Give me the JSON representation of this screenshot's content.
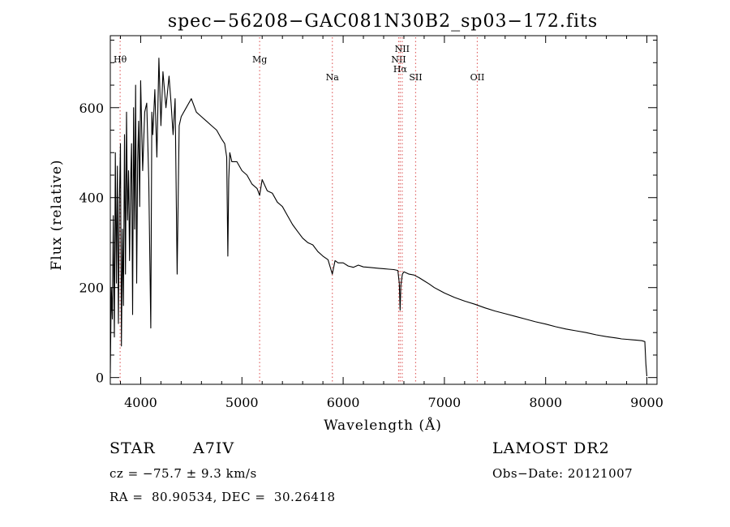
{
  "chart_data": {
    "type": "line",
    "title": "spec−56208−GAC081N30B2_sp03−172.fits",
    "xlabel": "Wavelength (Å)",
    "ylabel": "Flux (relative)",
    "xlim": [
      3700,
      9100
    ],
    "ylim": [
      -15,
      760
    ],
    "xticks": [
      4000,
      5000,
      6000,
      7000,
      8000,
      9000
    ],
    "yticks": [
      0,
      200,
      400,
      600
    ],
    "line_color": "#000000",
    "marker_color": "#e06666",
    "lines": [
      {
        "label": "Hθ",
        "x": 3797,
        "row": 1
      },
      {
        "label": "Mg",
        "x": 5175,
        "row": 1
      },
      {
        "label": "Na",
        "x": 5893,
        "row": 3
      },
      {
        "label": "NII",
        "x": 6548,
        "row": 1
      },
      {
        "label": "Hα",
        "x": 6563,
        "row": 2
      },
      {
        "label": "NII",
        "x": 6583,
        "row": 0
      },
      {
        "label": "SII",
        "x": 6716,
        "row": 3
      },
      {
        "label": "OII",
        "x": 7325,
        "row": 3
      }
    ],
    "series": [
      {
        "x": [
          3700,
          3710,
          3720,
          3730,
          3740,
          3750,
          3760,
          3770,
          3780,
          3790,
          3800,
          3810,
          3820,
          3830,
          3840,
          3850,
          3860,
          3870,
          3880,
          3890,
          3900,
          3910,
          3920,
          3930,
          3940,
          3950,
          3960,
          3970,
          3980,
          3990,
          4000,
          4020,
          4040,
          4060,
          4080,
          4100,
          4110,
          4120,
          4140,
          4160,
          4180,
          4200,
          4220,
          4250,
          4280,
          4300,
          4320,
          4340,
          4360,
          4380,
          4400,
          4450,
          4500,
          4550,
          4600,
          4650,
          4700,
          4750,
          4800,
          4830,
          4850,
          4861,
          4870,
          4880,
          4900,
          4950,
          5000,
          5050,
          5100,
          5150,
          5175,
          5200,
          5250,
          5300,
          5350,
          5400,
          5450,
          5500,
          5550,
          5600,
          5650,
          5700,
          5750,
          5800,
          5850,
          5893,
          5920,
          5950,
          6000,
          6050,
          6100,
          6150,
          6200,
          6250,
          6300,
          6350,
          6400,
          6450,
          6500,
          6540,
          6555,
          6563,
          6570,
          6585,
          6600,
          6650,
          6700,
          6750,
          6800,
          6850,
          6900,
          6950,
          7000,
          7100,
          7200,
          7300,
          7400,
          7500,
          7600,
          7700,
          7800,
          7900,
          8000,
          8100,
          8200,
          8300,
          8400,
          8500,
          8600,
          8700,
          8750,
          8800,
          8850,
          8900,
          8950,
          8980,
          8990,
          9000
        ],
        "y": [
          10,
          200,
          130,
          360,
          90,
          500,
          210,
          470,
          120,
          390,
          520,
          70,
          330,
          160,
          540,
          230,
          590,
          350,
          460,
          260,
          430,
          520,
          140,
          600,
          330,
          650,
          210,
          480,
          570,
          380,
          660,
          460,
          590,
          610,
          440,
          110,
          590,
          540,
          640,
          490,
          710,
          560,
          680,
          600,
          670,
          610,
          540,
          620,
          230,
          560,
          580,
          600,
          620,
          590,
          580,
          570,
          560,
          550,
          530,
          520,
          490,
          270,
          440,
          500,
          480,
          480,
          460,
          450,
          430,
          420,
          405,
          440,
          415,
          410,
          390,
          380,
          360,
          340,
          325,
          310,
          300,
          295,
          280,
          270,
          262,
          230,
          260,
          255,
          255,
          248,
          245,
          250,
          246,
          245,
          244,
          243,
          242,
          241,
          240,
          238,
          210,
          150,
          205,
          230,
          235,
          230,
          228,
          222,
          215,
          208,
          200,
          194,
          188,
          178,
          170,
          163,
          155,
          148,
          142,
          136,
          130,
          124,
          119,
          113,
          108,
          104,
          100,
          95,
          91,
          88,
          86,
          85,
          84,
          83,
          82,
          80,
          30,
          3
        ]
      }
    ]
  },
  "footer": {
    "object_type": "STAR",
    "subclass": "A7IV",
    "survey": "LAMOST DR2",
    "redshift": "cz = −75.7 ± 9.3 km/s",
    "obs_date": "Obs−Date: 20121007",
    "coords": "RA =  80.90534, DEC =  30.26418"
  }
}
